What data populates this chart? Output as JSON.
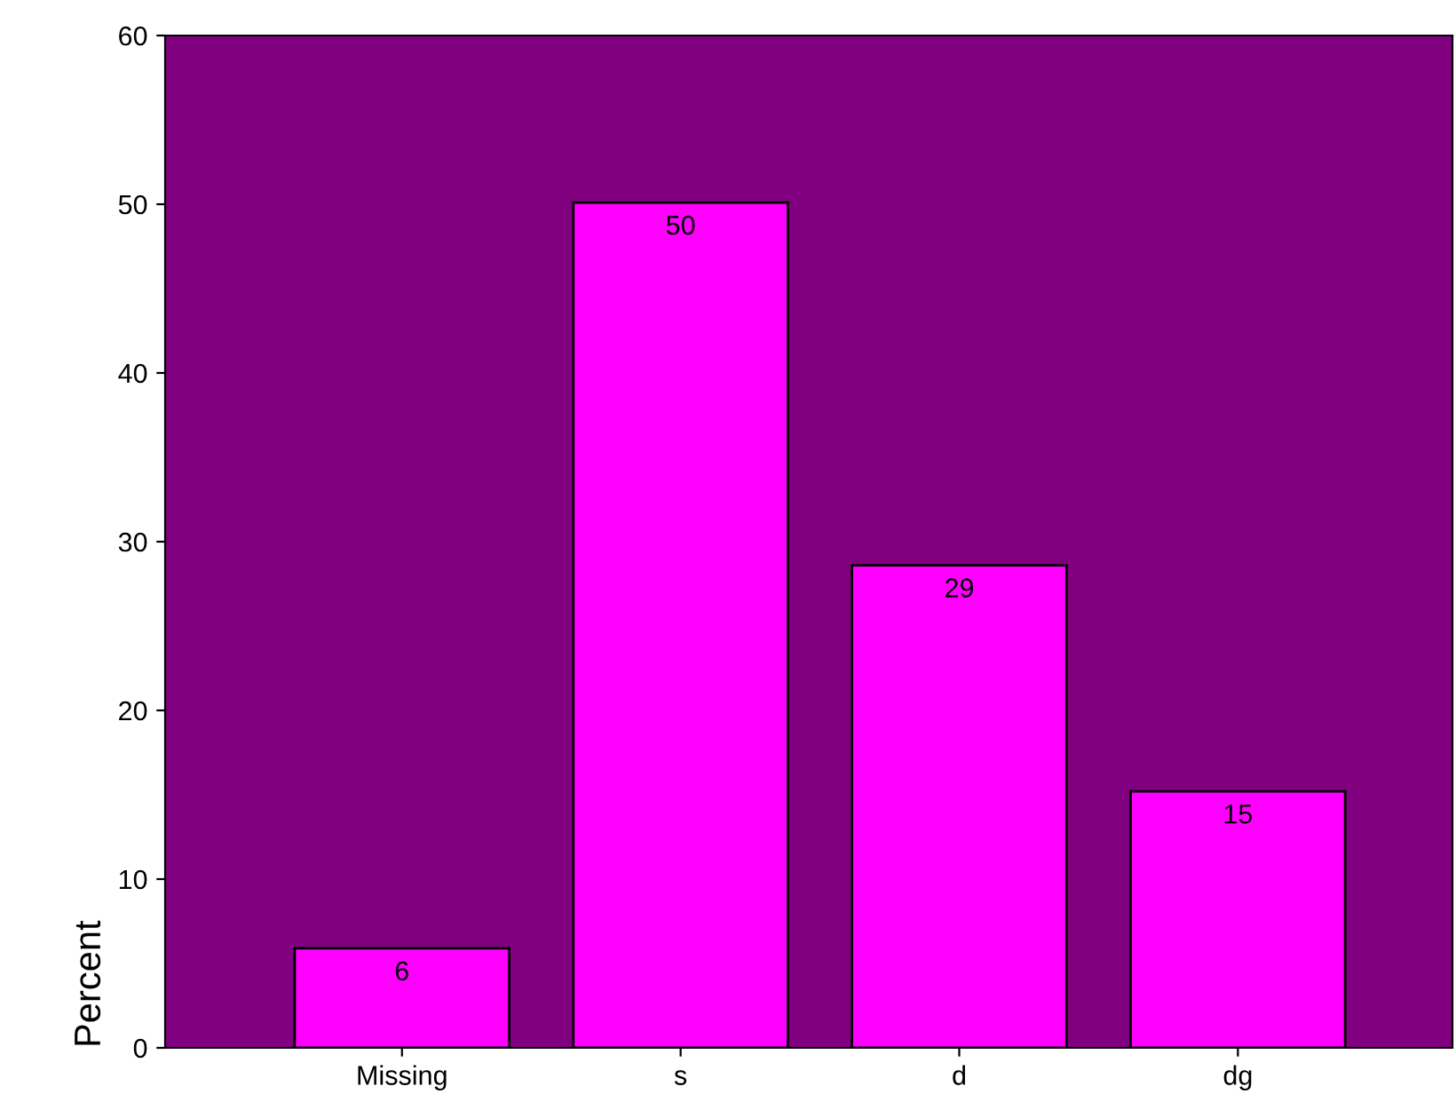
{
  "chart_data": {
    "type": "bar",
    "ylabel": "Percent",
    "categories": [
      "Missing",
      "s",
      "d",
      "dg"
    ],
    "values": [
      5.9,
      50.1,
      28.6,
      15.2
    ],
    "value_labels": [
      "6",
      "50",
      "29",
      "15"
    ],
    "color": "#ff00ff",
    "ylim": [
      0,
      60
    ],
    "yticks": [
      0,
      10,
      20,
      30,
      40,
      50,
      60
    ],
    "grid": false,
    "legend": false
  }
}
